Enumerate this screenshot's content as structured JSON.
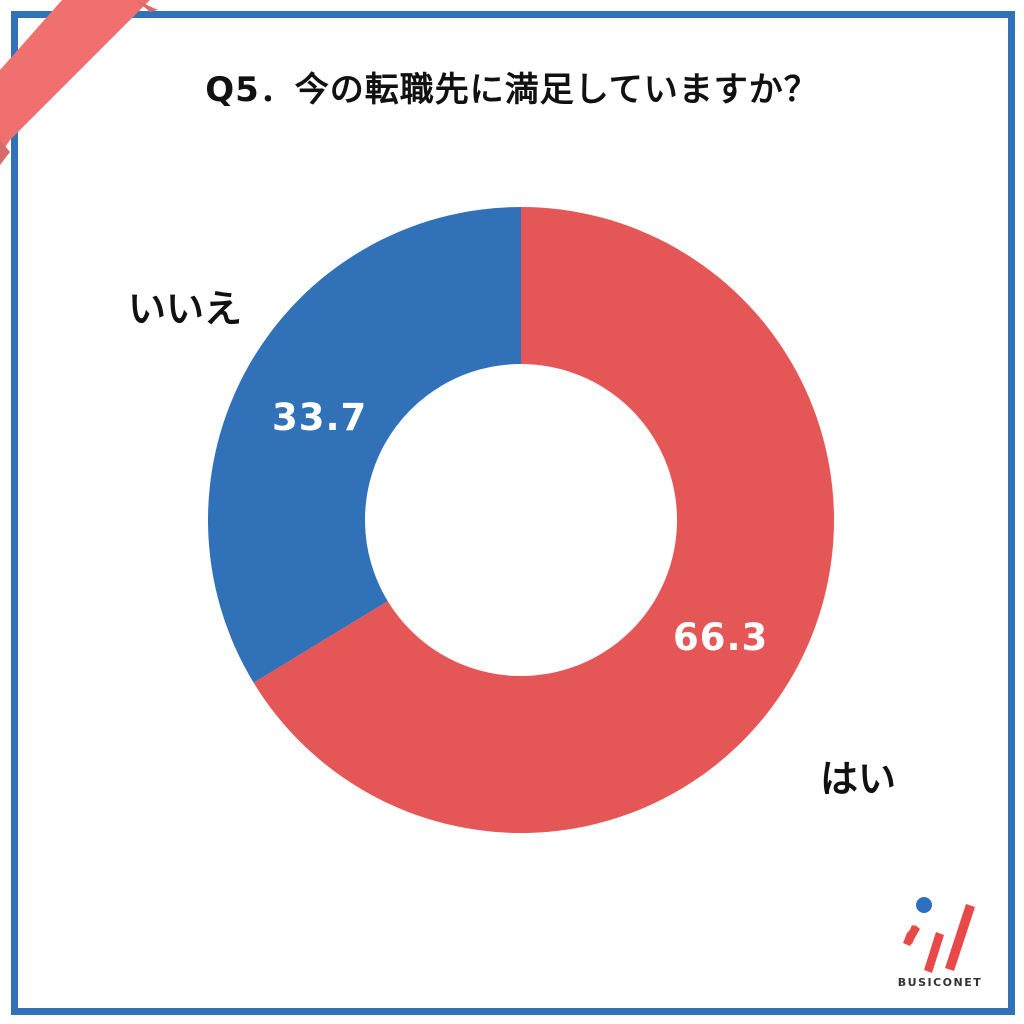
{
  "title": "Q5．今の転職先に満足していますか？",
  "colors": {
    "frame": "#3171b8",
    "ribbon": "#f07070",
    "yes": "#e55757",
    "no": "#3171b8",
    "logo_dot": "#2f6fbf",
    "logo_bars": "#e84848"
  },
  "labels": {
    "no_category": "いいえ",
    "yes_category": "はい",
    "no_value": "33.7",
    "yes_value": "66.3"
  },
  "logo": {
    "text": "BUSICONET"
  },
  "chart_data": {
    "type": "pie",
    "subtype": "donut",
    "title": "Q5．今の転職先に満足していますか？",
    "categories": [
      "はい",
      "いいえ"
    ],
    "values": [
      66.3,
      33.7
    ],
    "unit": "%",
    "colors": [
      "#e55757",
      "#3171b8"
    ],
    "start_angle": "12 o'clock, clockwise",
    "legend": "none (category labels placed outside ring)"
  }
}
